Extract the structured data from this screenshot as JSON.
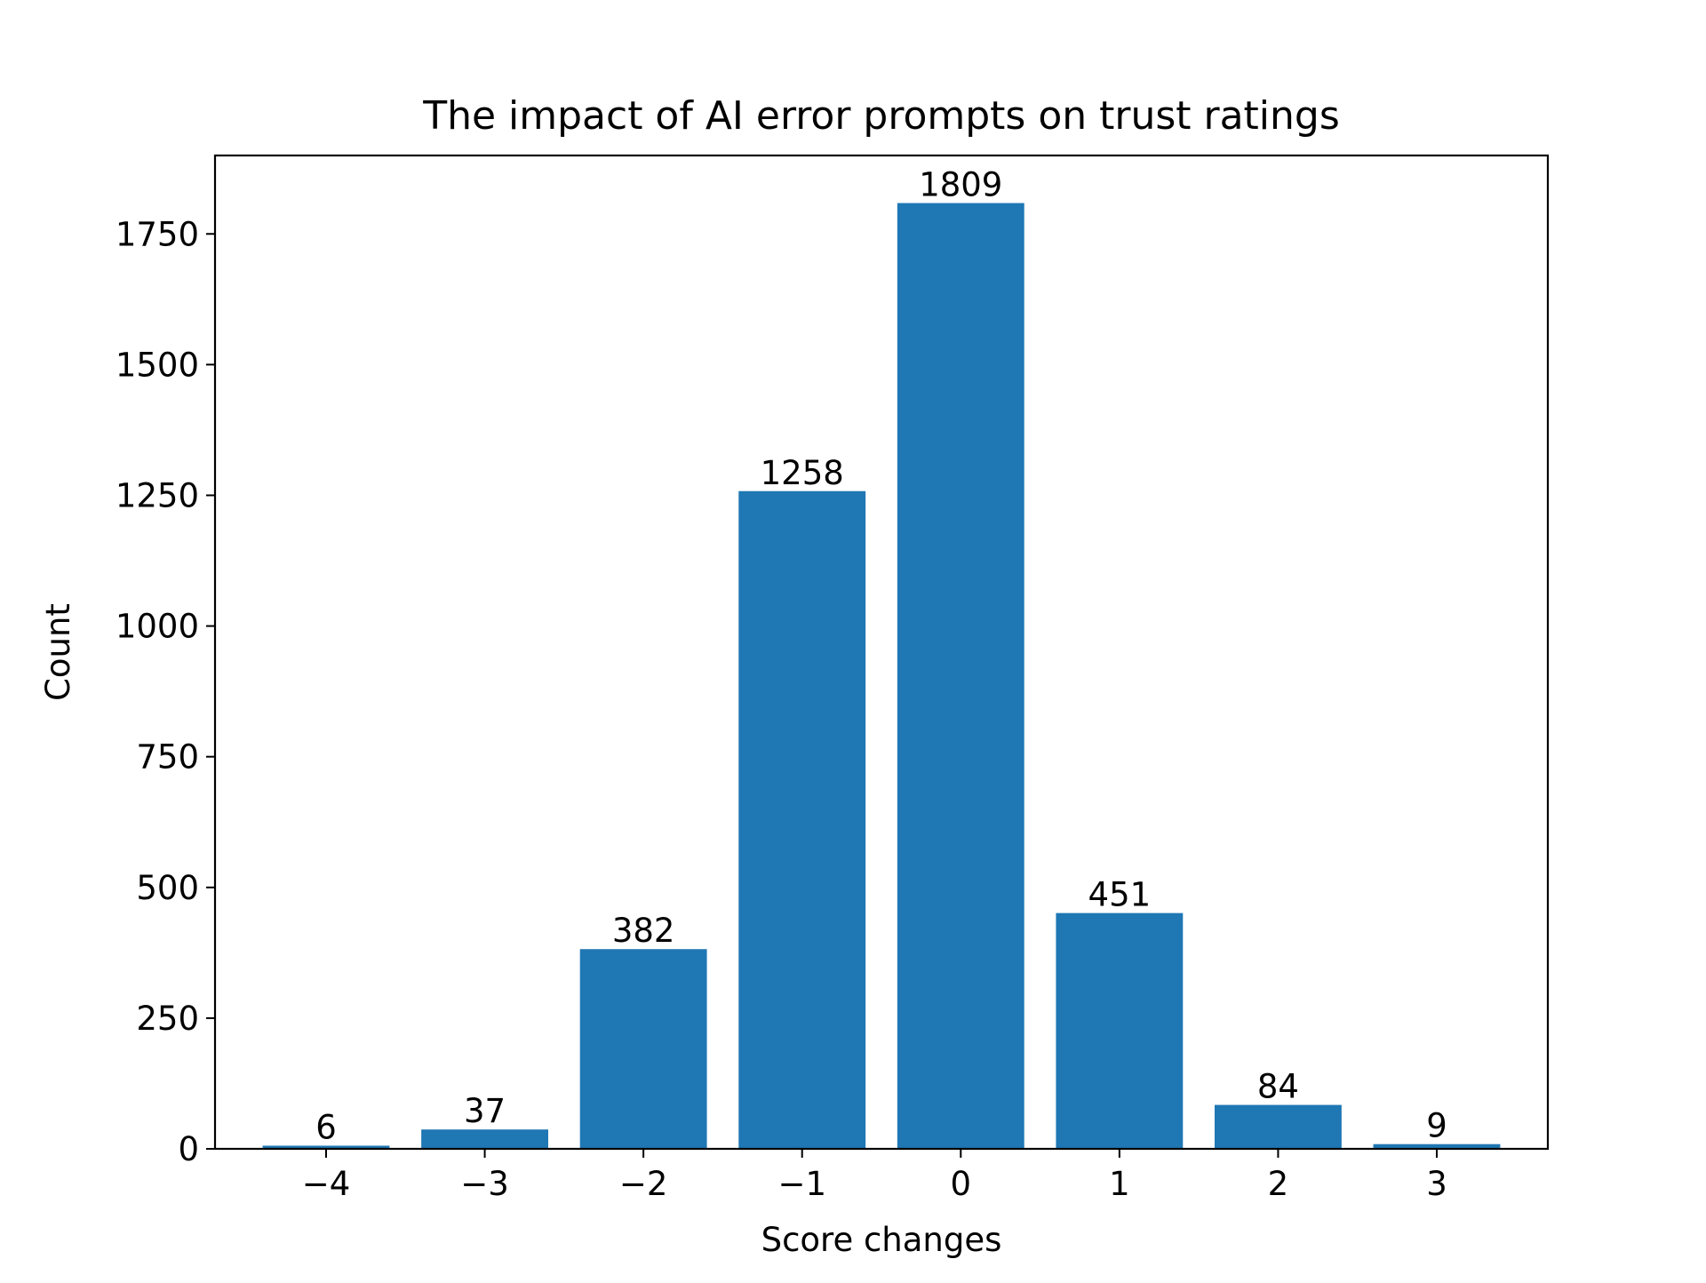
{
  "chart_data": {
    "type": "bar",
    "title": "The impact of AI error prompts on trust ratings",
    "xlabel": "Score changes",
    "ylabel": "Count",
    "categories": [
      "−4",
      "−3",
      "−2",
      "−1",
      "0",
      "1",
      "2",
      "3"
    ],
    "x": [
      -4,
      -3,
      -2,
      -1,
      0,
      1,
      2,
      3
    ],
    "values": [
      6,
      37,
      382,
      1258,
      1809,
      451,
      84,
      9
    ],
    "data_labels": [
      "6",
      "37",
      "382",
      "1258",
      "1809",
      "451",
      "84",
      "9"
    ],
    "xlim": [
      -4.7,
      3.7
    ],
    "ylim": [
      0,
      1900
    ],
    "yticks": [
      0,
      250,
      500,
      750,
      1000,
      1250,
      1500,
      1750
    ],
    "ytick_labels": [
      "0",
      "250",
      "500",
      "750",
      "1000",
      "1250",
      "1500",
      "1750"
    ],
    "bar_color": "#1f77b4",
    "grid": false,
    "legend": false
  }
}
